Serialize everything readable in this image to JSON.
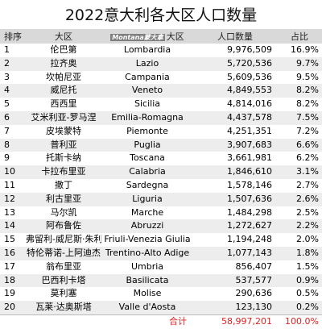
{
  "title": "2022意大利各大区人口数量",
  "header": {
    "idx": "排序",
    "cn": "大区",
    "watermark": "Montana蒙大拿",
    "en": "大区",
    "pop": "人口数量",
    "pct": "占比"
  },
  "rows": [
    {
      "idx": "1",
      "cn": "伦巴第",
      "en": "Lombardia",
      "pop": "9,976,509",
      "pct": "16.9%"
    },
    {
      "idx": "2",
      "cn": "拉齐奥",
      "en": "Lazio",
      "pop": "5,720,536",
      "pct": "9.7%"
    },
    {
      "idx": "3",
      "cn": "坎帕尼亚",
      "en": "Campania",
      "pop": "5,609,536",
      "pct": "9.5%"
    },
    {
      "idx": "4",
      "cn": "威尼托",
      "en": "Veneto",
      "pop": "4,849,553",
      "pct": "8.2%"
    },
    {
      "idx": "5",
      "cn": "西西里",
      "en": "Sicilia",
      "pop": "4,814,016",
      "pct": "8.2%"
    },
    {
      "idx": "6",
      "cn": "艾米利亚-罗马涅",
      "en": "Emilia-Romagna",
      "pop": "4,437,578",
      "pct": "7.5%"
    },
    {
      "idx": "7",
      "cn": "皮埃蒙特",
      "en": "Piemonte",
      "pop": "4,251,351",
      "pct": "7.2%"
    },
    {
      "idx": "8",
      "cn": "普利亚",
      "en": "Puglia",
      "pop": "3,907,683",
      "pct": "6.6%"
    },
    {
      "idx": "9",
      "cn": "托斯卡纳",
      "en": "Toscana",
      "pop": "3,661,981",
      "pct": "6.2%"
    },
    {
      "idx": "10",
      "cn": "卡拉布里亚",
      "en": "Calabria",
      "pop": "1,846,610",
      "pct": "3.1%"
    },
    {
      "idx": "11",
      "cn": "撒丁",
      "en": "Sardegna",
      "pop": "1,578,146",
      "pct": "2.7%"
    },
    {
      "idx": "12",
      "cn": "利古里亚",
      "en": "Liguria",
      "pop": "1,507,636",
      "pct": "2.6%"
    },
    {
      "idx": "13",
      "cn": "马尔凯",
      "en": "Marche",
      "pop": "1,484,298",
      "pct": "2.5%"
    },
    {
      "idx": "14",
      "cn": "阿布鲁佐",
      "en": "Abruzzi",
      "pop": "1,272,627",
      "pct": "2.2%"
    },
    {
      "idx": "15",
      "cn": "弗留利-威尼斯·朱利亚",
      "en": "Friuli-Venezia Giulia",
      "pop": "1,194,248",
      "pct": "2.0%"
    },
    {
      "idx": "16",
      "cn": "特伦蒂诺-上阿迪杰",
      "en": "Trentino-Alto Adige",
      "pop": "1,077,143",
      "pct": "1.8%"
    },
    {
      "idx": "17",
      "cn": "翁布里亚",
      "en": "Umbria",
      "pop": "856,407",
      "pct": "1.5%"
    },
    {
      "idx": "18",
      "cn": "巴西利卡塔",
      "en": "Basilicata",
      "pop": "537,577",
      "pct": "0.9%"
    },
    {
      "idx": "19",
      "cn": "莫利塞",
      "en": "Molise",
      "pop": "290,636",
      "pct": "0.5%"
    },
    {
      "idx": "20",
      "cn": "瓦莱·达奥斯塔",
      "en": "Valle d'Aosta",
      "pop": "123,130",
      "pct": "0.2%"
    }
  ],
  "total": {
    "label": "合计",
    "pop": "58,997,201",
    "pct": "100.0%"
  },
  "colors": {
    "header_bg": "#d9d9d9",
    "stripe_bg": "#ededed",
    "total_text": "#e02020"
  }
}
